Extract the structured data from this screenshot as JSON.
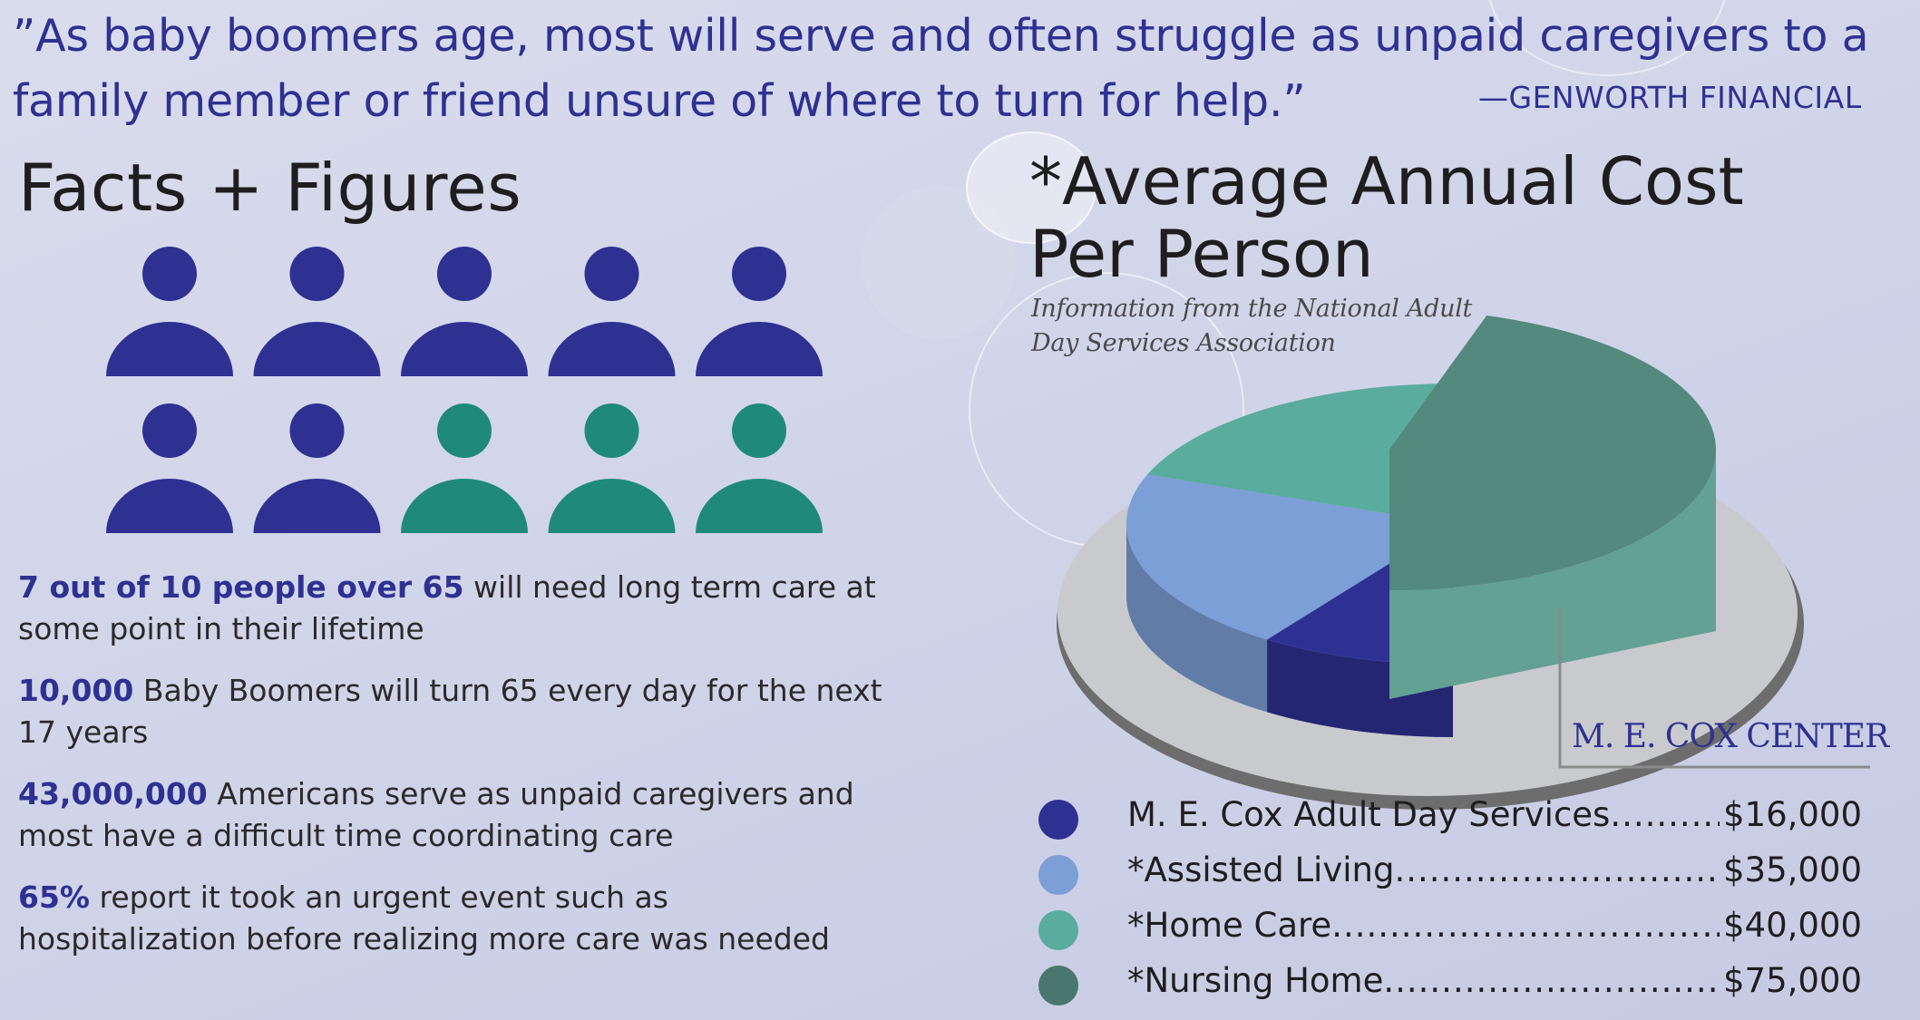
{
  "quote": {
    "text": "”As baby boomers age, most will serve and often struggle as unpaid caregivers to a family member or friend unsure of where to turn for help.”",
    "source": "—GENWORTH FINANCIAL"
  },
  "facts": {
    "title": "Facts + Figures",
    "pictogram": {
      "total": 10,
      "highlighted": 7,
      "highlight_color": "#2e3192",
      "other_color": "#1f8a7c"
    },
    "items": [
      {
        "highlight": "7 out of 10 people over 65",
        "text": " will need long term care at some point in their lifetime"
      },
      {
        "highlight": "10,000",
        "text": " Baby Boomers will turn 65 every day for the next 17 years"
      },
      {
        "highlight": "43,000,000",
        "text": " Americans serve as unpaid caregivers and most have a difficult time coordinating care"
      },
      {
        "highlight": "65%",
        "text": " report it took an urgent event such as hospitalization before realizing more care was needed"
      }
    ]
  },
  "chart_data": {
    "type": "pie",
    "title": "*Average Annual Cost Per Person",
    "subtitle": "Information from the National Adult Day Services Association",
    "center_label": "M. E. COX CENTER",
    "exploded_slice": "*Nursing Home",
    "slices": [
      {
        "label": "M. E. Cox Adult Day Services",
        "value": 16000,
        "value_label": "$16,000",
        "color": "#2e3192"
      },
      {
        "label": "*Assisted Living",
        "value": 35000,
        "value_label": "$35,000",
        "color": "#7b9fd6"
      },
      {
        "label": "*Home Care",
        "value": 40000,
        "value_label": "$40,000",
        "color": "#5aac9e"
      },
      {
        "label": "*Nursing Home",
        "value": 75000,
        "value_label": "$75,000",
        "color": "#49776d"
      }
    ]
  }
}
